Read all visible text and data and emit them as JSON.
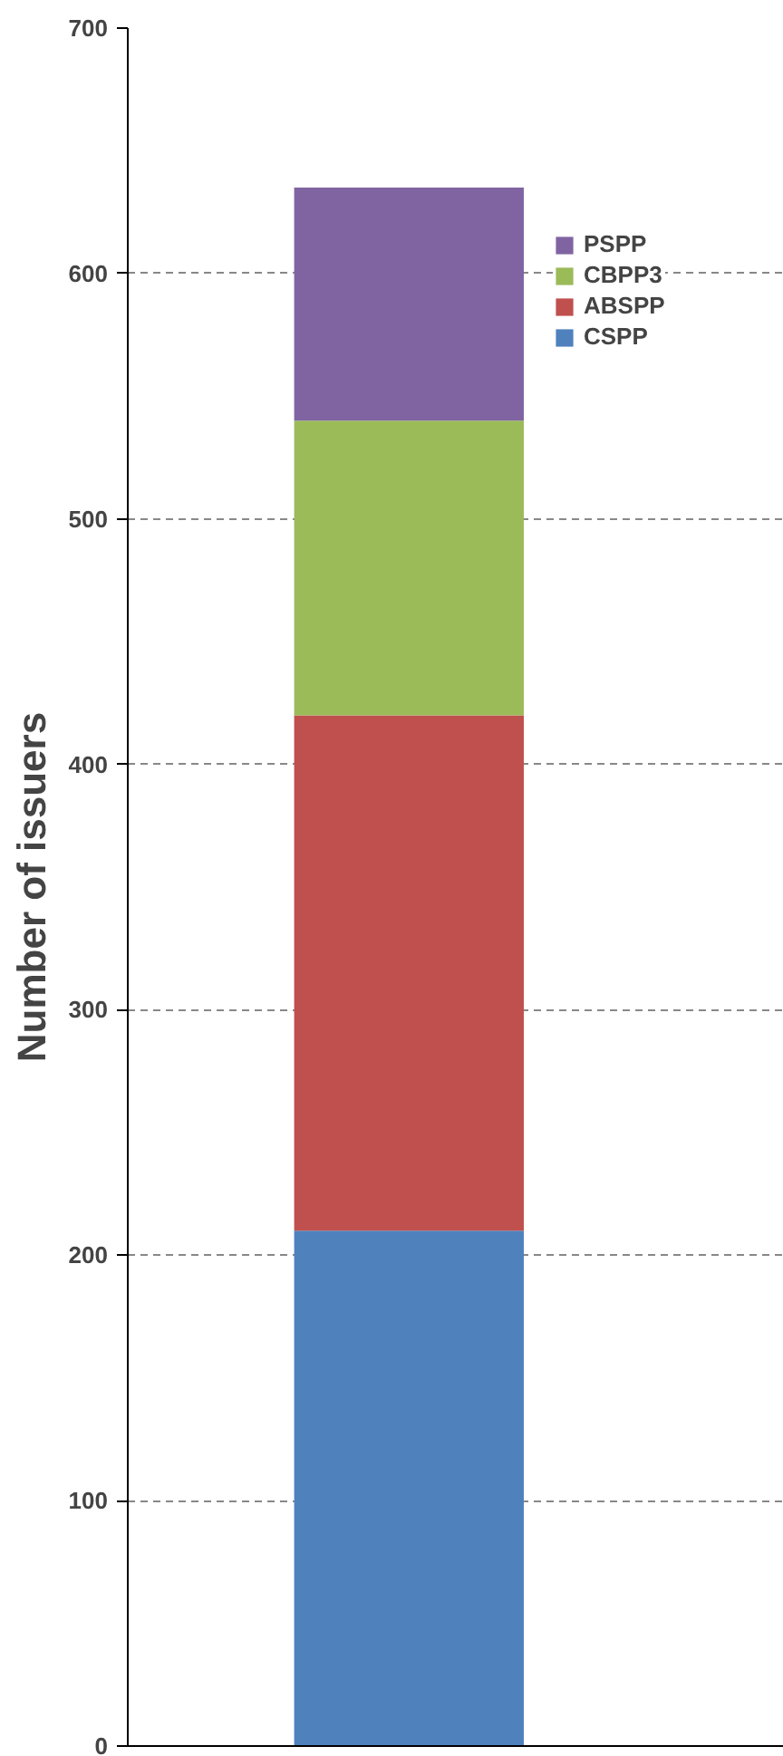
{
  "chart_data": {
    "type": "bar",
    "stacked": true,
    "ylabel": "Number of issuers",
    "categories": [
      null
    ],
    "series": [
      {
        "name": "CSPP",
        "color": "#4f81bd",
        "values": [
          210
        ]
      },
      {
        "name": "ABSPP",
        "color": "#c0504d",
        "values": [
          210
        ]
      },
      {
        "name": "CBPP3",
        "color": "#9bbb59",
        "values": [
          120
        ]
      },
      {
        "name": "PSPP",
        "color": "#8064a2",
        "values": [
          95
        ]
      }
    ],
    "ylim": [
      0,
      700
    ],
    "yticks": [
      0,
      100,
      200,
      300,
      400,
      500,
      600,
      700
    ],
    "grid": "y",
    "legend": "top right"
  }
}
